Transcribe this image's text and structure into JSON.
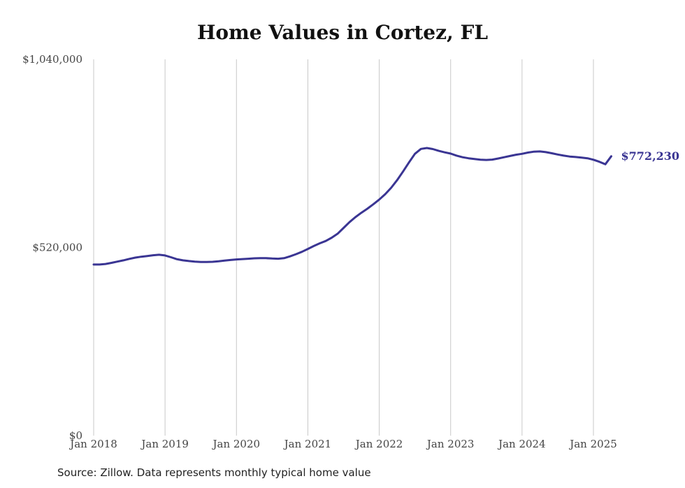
{
  "title": "Home Values in Cortez, FL",
  "source": "Source: Zillow. Data represents monthly typical home value",
  "colors": {
    "line": "#3a3593",
    "grid": "#c8c8c8",
    "text": "#444444"
  },
  "chart_data": {
    "type": "line",
    "title": "Home Values in Cortez, FL",
    "xlabel": "",
    "ylabel": "",
    "ylim": [
      0,
      1040000
    ],
    "yticks": [
      0,
      520000,
      1040000
    ],
    "ytick_labels": [
      "$0",
      "$520,000",
      "$1,040,000"
    ],
    "xticks": [
      "2018-01",
      "2019-01",
      "2020-01",
      "2021-01",
      "2022-01",
      "2023-01",
      "2024-01",
      "2025-01"
    ],
    "xtick_labels": [
      "Jan 2018",
      "Jan 2019",
      "Jan 2020",
      "Jan 2021",
      "Jan 2022",
      "Jan 2023",
      "Jan 2024",
      "Jan 2025"
    ],
    "grid": "vertical",
    "end_label": "$772,230",
    "series": [
      {
        "x": [
          "2018-01",
          "2018-02",
          "2018-03",
          "2018-04",
          "2018-05",
          "2018-06",
          "2018-07",
          "2018-08",
          "2018-09",
          "2018-10",
          "2018-11",
          "2018-12",
          "2019-01",
          "2019-02",
          "2019-03",
          "2019-04",
          "2019-05",
          "2019-06",
          "2019-07",
          "2019-08",
          "2019-09",
          "2019-10",
          "2019-11",
          "2019-12",
          "2020-01",
          "2020-02",
          "2020-03",
          "2020-04",
          "2020-05",
          "2020-06",
          "2020-07",
          "2020-08",
          "2020-09",
          "2020-10",
          "2020-11",
          "2020-12",
          "2021-01",
          "2021-02",
          "2021-03",
          "2021-04",
          "2021-05",
          "2021-06",
          "2021-07",
          "2021-08",
          "2021-09",
          "2021-10",
          "2021-11",
          "2021-12",
          "2022-01",
          "2022-02",
          "2022-03",
          "2022-04",
          "2022-05",
          "2022-06",
          "2022-07",
          "2022-08",
          "2022-09",
          "2022-10",
          "2022-11",
          "2022-12",
          "2023-01",
          "2023-02",
          "2023-03",
          "2023-04",
          "2023-05",
          "2023-06",
          "2023-07",
          "2023-08",
          "2023-09",
          "2023-10",
          "2023-11",
          "2023-12",
          "2024-01",
          "2024-02",
          "2024-03",
          "2024-04",
          "2024-05",
          "2024-06",
          "2024-07",
          "2024-08",
          "2024-09",
          "2024-10",
          "2024-11",
          "2024-12",
          "2025-01",
          "2025-02",
          "2025-03",
          "2025-04"
        ],
        "y": [
          473000,
          473000,
          474500,
          477500,
          481000,
          484500,
          488500,
          492000,
          494500,
          496500,
          498500,
          500000,
          498000,
          493000,
          487500,
          484500,
          482500,
          481000,
          480000,
          480000,
          480500,
          482000,
          484000,
          485500,
          487000,
          488000,
          489000,
          490000,
          490500,
          490500,
          489500,
          489000,
          490500,
          495500,
          501500,
          508000,
          516000,
          524000,
          531500,
          538000,
          547000,
          558000,
          574000,
          590000,
          604000,
          616000,
          627000,
          639500,
          652500,
          667500,
          685000,
          706000,
          730000,
          755000,
          779000,
          792500,
          795000,
          792000,
          787000,
          783000,
          779500,
          774000,
          769500,
          766500,
          764500,
          762500,
          762000,
          763000,
          766000,
          769500,
          773000,
          776500,
          779000,
          782500,
          785000,
          785500,
          783500,
          780500,
          777000,
          774000,
          771500,
          770000,
          768500,
          766500,
          762500,
          757000,
          750000,
          772230
        ]
      }
    ]
  }
}
